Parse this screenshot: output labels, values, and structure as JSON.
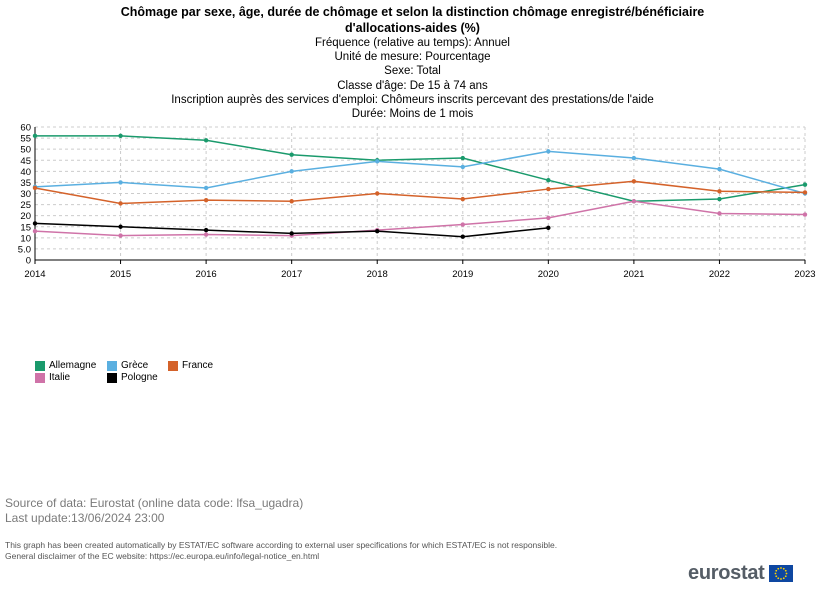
{
  "chart_data": {
    "type": "line",
    "title": "Chômage par sexe, âge, durée de chômage et selon la distinction chômage enregistré/bénéficiaire d'allocations-aides (%)",
    "subtitles": [
      "Fréquence (relative au temps): Annuel",
      "Unité de mesure: Pourcentage",
      "Sexe: Total",
      "Classe d'âge: De 15 à 74 ans",
      "Inscription auprès des services d'emploi: Chômeurs inscrits percevant des prestations/de l'aide",
      "Durée: Moins de 1 mois"
    ],
    "x": [
      "2014",
      "2015",
      "2016",
      "2017",
      "2018",
      "2019",
      "2020",
      "2021",
      "2022",
      "2023"
    ],
    "y_ticks": [
      "0",
      "5.0",
      "10",
      "15",
      "20",
      "25",
      "30",
      "35",
      "40",
      "45",
      "50",
      "55",
      "60"
    ],
    "ylim": [
      0,
      60
    ],
    "grid": true,
    "legend_position": "bottom-left",
    "series": [
      {
        "name": "Allemagne",
        "color": "#1a9a6c",
        "values": [
          56,
          56,
          54,
          47.5,
          45,
          46,
          36,
          26.5,
          27.5,
          34
        ]
      },
      {
        "name": "Grèce",
        "color": "#5aafe0",
        "values": [
          33,
          35,
          32.5,
          40,
          44.5,
          42,
          49,
          46,
          41,
          30
        ]
      },
      {
        "name": "France",
        "color": "#d4622a",
        "values": [
          32.5,
          25.5,
          27,
          26.5,
          30,
          27.5,
          32,
          35.5,
          31,
          30.5
        ]
      },
      {
        "name": "Italie",
        "color": "#cf73a8",
        "values": [
          13,
          11,
          11.5,
          11,
          13.5,
          16,
          19,
          26.5,
          21,
          20.5
        ]
      },
      {
        "name": "Pologne",
        "color": "#000000",
        "values": [
          16.5,
          15,
          13.5,
          12,
          13,
          10.5,
          14.5,
          null,
          null,
          null
        ]
      }
    ]
  },
  "source": {
    "line1": "Source of data: Eurostat (online data code: lfsa_ugadra)",
    "line2": "Last update:13/06/2024 23:00"
  },
  "disclaimer": {
    "line1": "This graph has been created automatically by ESTAT/EC software according to external user specifications for which ESTAT/EC is not responsible.",
    "line2": "General disclaimer of the EC website: https://ec.europa.eu/info/legal-notice_en.html"
  },
  "logo": {
    "text": "eurostat",
    "flag_color": "#0e47a1",
    "star_color": "#ffd400"
  }
}
